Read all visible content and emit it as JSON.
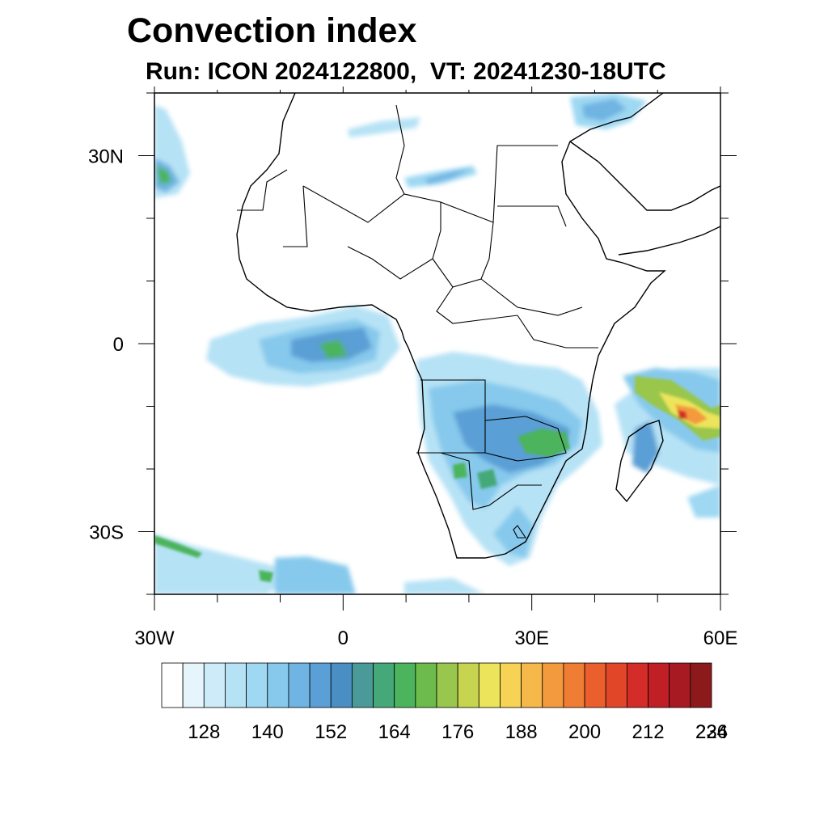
{
  "title": "Convection index",
  "subtitle": "Run: ICON 2024122800,  VT: 20241230-18UTC",
  "map": {
    "lon_range": [
      -30,
      60
    ],
    "lat_range": [
      -40,
      40
    ],
    "lon_ticks": [
      {
        "value": -30,
        "label": "30W"
      },
      {
        "value": 0,
        "label": "0"
      },
      {
        "value": 30,
        "label": "30E"
      },
      {
        "value": 60,
        "label": "60E"
      }
    ],
    "lat_ticks": [
      {
        "value": 30,
        "label": "30N"
      },
      {
        "value": 0,
        "label": "0"
      },
      {
        "value": -30,
        "label": "30S"
      }
    ]
  },
  "colorbar": {
    "colors": [
      "#ffffff",
      "#e6f4fb",
      "#cdebf8",
      "#b6e2f5",
      "#9ed8f2",
      "#86c9ec",
      "#6fb4e2",
      "#5a9fd5",
      "#4a8fc4",
      "#4a9a9a",
      "#45a878",
      "#4cb45c",
      "#6cbb4c",
      "#99c64c",
      "#c6d450",
      "#ece45a",
      "#f6d255",
      "#f6b84a",
      "#f49a3e",
      "#f07d34",
      "#ea5f2c",
      "#e24628",
      "#d42c28",
      "#c01f26",
      "#a81a22",
      "#8c1a1c"
    ],
    "labels": [
      "128",
      "140",
      "152",
      "164",
      "176",
      "188",
      "200",
      "212",
      "224",
      "236"
    ]
  }
}
